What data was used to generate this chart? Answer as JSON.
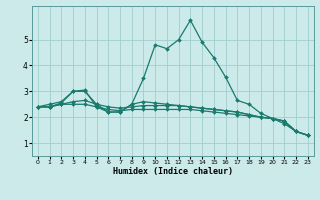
{
  "xlabel": "Humidex (Indice chaleur)",
  "ylabel": "",
  "background_color": "#cceaea",
  "grid_color": "#9fcece",
  "line_color": "#1a7a6e",
  "xlim": [
    -0.5,
    23.5
  ],
  "ylim": [
    0.5,
    6.3
  ],
  "yticks": [
    1,
    2,
    3,
    4,
    5
  ],
  "xticks": [
    0,
    1,
    2,
    3,
    4,
    5,
    6,
    7,
    8,
    9,
    10,
    11,
    12,
    13,
    14,
    15,
    16,
    17,
    18,
    19,
    20,
    21,
    22,
    23
  ],
  "series": [
    {
      "x": [
        0,
        1,
        2,
        3,
        4,
        5,
        6,
        7,
        8,
        9,
        10,
        11,
        12,
        13,
        14,
        15,
        16,
        17,
        18,
        19,
        20,
        21,
        22,
        23
      ],
      "y": [
        2.4,
        2.5,
        2.6,
        3.0,
        3.0,
        2.5,
        2.2,
        2.2,
        2.5,
        3.5,
        4.8,
        4.65,
        5.0,
        5.75,
        4.9,
        4.3,
        3.55,
        2.65,
        2.5,
        2.15,
        1.95,
        1.75,
        1.45,
        1.3
      ]
    },
    {
      "x": [
        0,
        1,
        2,
        3,
        4,
        5,
        6,
        7,
        8,
        9,
        10,
        11,
        12,
        13,
        14,
        15,
        16,
        17,
        18,
        19,
        20,
        21,
        22,
        23
      ],
      "y": [
        2.4,
        2.4,
        2.55,
        3.0,
        3.05,
        2.4,
        2.2,
        2.2,
        2.5,
        2.6,
        2.55,
        2.5,
        2.45,
        2.4,
        2.35,
        2.3,
        2.25,
        2.2,
        2.1,
        2.0,
        1.95,
        1.85,
        1.45,
        1.3
      ]
    },
    {
      "x": [
        0,
        1,
        2,
        3,
        4,
        5,
        6,
        7,
        8,
        9,
        10,
        11,
        12,
        13,
        14,
        15,
        16,
        17,
        18,
        19,
        20,
        21,
        22,
        23
      ],
      "y": [
        2.4,
        2.4,
        2.5,
        2.5,
        2.5,
        2.4,
        2.3,
        2.25,
        2.3,
        2.3,
        2.3,
        2.3,
        2.3,
        2.3,
        2.25,
        2.2,
        2.15,
        2.1,
        2.05,
        2.0,
        1.95,
        1.85,
        1.45,
        1.3
      ]
    },
    {
      "x": [
        0,
        1,
        2,
        3,
        4,
        5,
        6,
        7,
        8,
        9,
        10,
        11,
        12,
        13,
        14,
        15,
        16,
        17,
        18,
        19,
        20,
        21,
        22,
        23
      ],
      "y": [
        2.4,
        2.4,
        2.5,
        2.6,
        2.65,
        2.5,
        2.4,
        2.35,
        2.4,
        2.45,
        2.45,
        2.45,
        2.45,
        2.4,
        2.35,
        2.3,
        2.25,
        2.2,
        2.1,
        2.0,
        1.95,
        1.85,
        1.45,
        1.3
      ]
    }
  ]
}
